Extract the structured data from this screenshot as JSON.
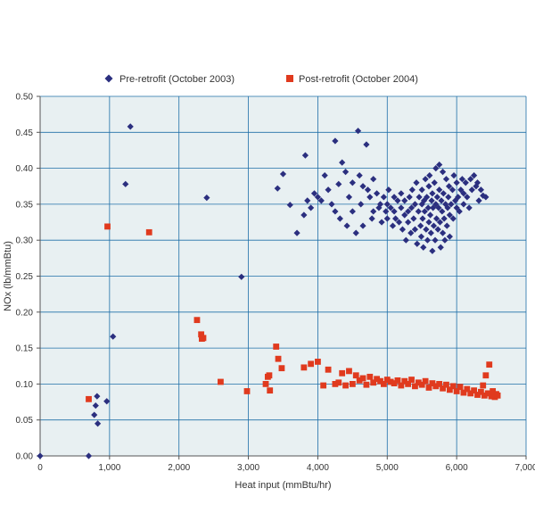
{
  "chart_data": {
    "type": "scatter",
    "title": "",
    "xlabel": "Heat input (mmBtu/hr)",
    "ylabel": "NOx (lb/mmBtu)",
    "xlim": [
      0,
      7000
    ],
    "ylim": [
      0,
      0.5
    ],
    "x_ticks": [
      0,
      1000,
      2000,
      3000,
      4000,
      5000,
      6000,
      7000
    ],
    "x_tick_labels": [
      "0",
      "1,000",
      "2,000",
      "3,000",
      "4,000",
      "5,000",
      "6,000",
      "7,000"
    ],
    "y_ticks": [
      0,
      0.05,
      0.1,
      0.15,
      0.2,
      0.25,
      0.3,
      0.35,
      0.4,
      0.45,
      0.5
    ],
    "y_tick_labels": [
      "0.00",
      "0.05",
      "0.10",
      "0.15",
      "0.20",
      "0.25",
      "0.30",
      "0.35",
      "0.40",
      "0.45",
      "0.50"
    ],
    "grid": true,
    "legend_position": "top",
    "plot_background": "#e8f0f2",
    "grid_color": "#1f6fa8",
    "series": [
      {
        "name": "Pre-retrofit (October 2003)",
        "marker": "diamond",
        "color": "#2b2f7f",
        "points": [
          [
            0,
            0.0
          ],
          [
            700,
            0.0
          ],
          [
            780,
            0.057
          ],
          [
            800,
            0.07
          ],
          [
            820,
            0.083
          ],
          [
            830,
            0.045
          ],
          [
            960,
            0.076
          ],
          [
            1050,
            0.166
          ],
          [
            1230,
            0.378
          ],
          [
            1300,
            0.458
          ],
          [
            2400,
            0.359
          ],
          [
            2900,
            0.249
          ],
          [
            3420,
            0.372
          ],
          [
            3500,
            0.392
          ],
          [
            3600,
            0.349
          ],
          [
            3700,
            0.31
          ],
          [
            3800,
            0.335
          ],
          [
            3820,
            0.418
          ],
          [
            3850,
            0.355
          ],
          [
            3900,
            0.345
          ],
          [
            3950,
            0.365
          ],
          [
            4000,
            0.36
          ],
          [
            4050,
            0.355
          ],
          [
            4100,
            0.39
          ],
          [
            4150,
            0.37
          ],
          [
            4200,
            0.35
          ],
          [
            4250,
            0.34
          ],
          [
            4250,
            0.438
          ],
          [
            4300,
            0.378
          ],
          [
            4320,
            0.33
          ],
          [
            4350,
            0.408
          ],
          [
            4400,
            0.395
          ],
          [
            4420,
            0.32
          ],
          [
            4450,
            0.36
          ],
          [
            4500,
            0.38
          ],
          [
            4500,
            0.34
          ],
          [
            4550,
            0.31
          ],
          [
            4580,
            0.452
          ],
          [
            4600,
            0.39
          ],
          [
            4620,
            0.35
          ],
          [
            4650,
            0.375
          ],
          [
            4650,
            0.32
          ],
          [
            4700,
            0.433
          ],
          [
            4720,
            0.37
          ],
          [
            4750,
            0.36
          ],
          [
            4780,
            0.33
          ],
          [
            4800,
            0.385
          ],
          [
            4800,
            0.34
          ],
          [
            4850,
            0.365
          ],
          [
            4880,
            0.345
          ],
          [
            4900,
            0.35
          ],
          [
            4920,
            0.325
          ],
          [
            4950,
            0.36
          ],
          [
            4980,
            0.34
          ],
          [
            5000,
            0.35
          ],
          [
            5000,
            0.33
          ],
          [
            5020,
            0.37
          ],
          [
            5050,
            0.345
          ],
          [
            5080,
            0.32
          ],
          [
            5100,
            0.36
          ],
          [
            5100,
            0.34
          ],
          [
            5120,
            0.33
          ],
          [
            5150,
            0.355
          ],
          [
            5170,
            0.325
          ],
          [
            5200,
            0.345
          ],
          [
            5200,
            0.365
          ],
          [
            5220,
            0.315
          ],
          [
            5250,
            0.335
          ],
          [
            5250,
            0.355
          ],
          [
            5270,
            0.3
          ],
          [
            5300,
            0.34
          ],
          [
            5300,
            0.325
          ],
          [
            5320,
            0.36
          ],
          [
            5340,
            0.31
          ],
          [
            5350,
            0.345
          ],
          [
            5360,
            0.37
          ],
          [
            5380,
            0.33
          ],
          [
            5400,
            0.35
          ],
          [
            5400,
            0.315
          ],
          [
            5420,
            0.38
          ],
          [
            5430,
            0.295
          ],
          [
            5450,
            0.34
          ],
          [
            5460,
            0.36
          ],
          [
            5480,
            0.32
          ],
          [
            5490,
            0.305
          ],
          [
            5500,
            0.35
          ],
          [
            5500,
            0.37
          ],
          [
            5510,
            0.33
          ],
          [
            5520,
            0.29
          ],
          [
            5530,
            0.355
          ],
          [
            5540,
            0.34
          ],
          [
            5550,
            0.385
          ],
          [
            5560,
            0.315
          ],
          [
            5570,
            0.36
          ],
          [
            5580,
            0.3
          ],
          [
            5590,
            0.345
          ],
          [
            5600,
            0.375
          ],
          [
            5600,
            0.325
          ],
          [
            5610,
            0.39
          ],
          [
            5620,
            0.335
          ],
          [
            5630,
            0.31
          ],
          [
            5640,
            0.355
          ],
          [
            5650,
            0.365
          ],
          [
            5650,
            0.285
          ],
          [
            5660,
            0.345
          ],
          [
            5670,
            0.32
          ],
          [
            5680,
            0.38
          ],
          [
            5690,
            0.3
          ],
          [
            5700,
            0.35
          ],
          [
            5700,
            0.4
          ],
          [
            5710,
            0.33
          ],
          [
            5720,
            0.36
          ],
          [
            5730,
            0.315
          ],
          [
            5740,
            0.345
          ],
          [
            5750,
            0.37
          ],
          [
            5750,
            0.405
          ],
          [
            5760,
            0.325
          ],
          [
            5770,
            0.29
          ],
          [
            5780,
            0.355
          ],
          [
            5790,
            0.34
          ],
          [
            5800,
            0.395
          ],
          [
            5800,
            0.31
          ],
          [
            5810,
            0.365
          ],
          [
            5820,
            0.33
          ],
          [
            5830,
            0.3
          ],
          [
            5840,
            0.35
          ],
          [
            5850,
            0.385
          ],
          [
            5860,
            0.32
          ],
          [
            5870,
            0.345
          ],
          [
            5880,
            0.36
          ],
          [
            5890,
            0.375
          ],
          [
            5900,
            0.335
          ],
          [
            5900,
            0.305
          ],
          [
            5920,
            0.35
          ],
          [
            5940,
            0.37
          ],
          [
            5950,
            0.33
          ],
          [
            5960,
            0.39
          ],
          [
            5980,
            0.355
          ],
          [
            6000,
            0.345
          ],
          [
            6000,
            0.38
          ],
          [
            6020,
            0.36
          ],
          [
            6040,
            0.34
          ],
          [
            6060,
            0.37
          ],
          [
            6080,
            0.385
          ],
          [
            6100,
            0.35
          ],
          [
            6100,
            0.365
          ],
          [
            6130,
            0.38
          ],
          [
            6150,
            0.36
          ],
          [
            6180,
            0.345
          ],
          [
            6200,
            0.385
          ],
          [
            6220,
            0.37
          ],
          [
            6250,
            0.39
          ],
          [
            6280,
            0.375
          ],
          [
            6300,
            0.38
          ],
          [
            6320,
            0.355
          ],
          [
            6350,
            0.37
          ],
          [
            6380,
            0.362
          ],
          [
            6420,
            0.36
          ]
        ]
      },
      {
        "name": "Post-retrofit (October 2004)",
        "marker": "square",
        "color": "#e03a1e",
        "points": [
          [
            700,
            0.079
          ],
          [
            970,
            0.319
          ],
          [
            1570,
            0.311
          ],
          [
            2260,
            0.189
          ],
          [
            2320,
            0.169
          ],
          [
            2330,
            0.163
          ],
          [
            2350,
            0.164
          ],
          [
            2600,
            0.103
          ],
          [
            2980,
            0.09
          ],
          [
            3250,
            0.1
          ],
          [
            3280,
            0.11
          ],
          [
            3300,
            0.112
          ],
          [
            3310,
            0.091
          ],
          [
            3400,
            0.152
          ],
          [
            3430,
            0.135
          ],
          [
            3480,
            0.122
          ],
          [
            3800,
            0.123
          ],
          [
            3900,
            0.128
          ],
          [
            4000,
            0.131
          ],
          [
            4080,
            0.098
          ],
          [
            4150,
            0.12
          ],
          [
            4250,
            0.1
          ],
          [
            4300,
            0.102
          ],
          [
            4350,
            0.115
          ],
          [
            4400,
            0.098
          ],
          [
            4450,
            0.118
          ],
          [
            4500,
            0.1
          ],
          [
            4550,
            0.112
          ],
          [
            4600,
            0.105
          ],
          [
            4650,
            0.108
          ],
          [
            4700,
            0.099
          ],
          [
            4750,
            0.11
          ],
          [
            4800,
            0.102
          ],
          [
            4850,
            0.107
          ],
          [
            4900,
            0.104
          ],
          [
            4950,
            0.1
          ],
          [
            5000,
            0.106
          ],
          [
            5050,
            0.103
          ],
          [
            5100,
            0.101
          ],
          [
            5150,
            0.105
          ],
          [
            5200,
            0.098
          ],
          [
            5250,
            0.104
          ],
          [
            5300,
            0.1
          ],
          [
            5350,
            0.106
          ],
          [
            5400,
            0.097
          ],
          [
            5450,
            0.102
          ],
          [
            5500,
            0.099
          ],
          [
            5550,
            0.104
          ],
          [
            5600,
            0.095
          ],
          [
            5650,
            0.101
          ],
          [
            5700,
            0.097
          ],
          [
            5750,
            0.1
          ],
          [
            5800,
            0.094
          ],
          [
            5850,
            0.099
          ],
          [
            5900,
            0.092
          ],
          [
            5950,
            0.097
          ],
          [
            6000,
            0.09
          ],
          [
            6050,
            0.096
          ],
          [
            6100,
            0.088
          ],
          [
            6150,
            0.093
          ],
          [
            6200,
            0.087
          ],
          [
            6250,
            0.091
          ],
          [
            6300,
            0.085
          ],
          [
            6350,
            0.089
          ],
          [
            6380,
            0.098
          ],
          [
            6400,
            0.084
          ],
          [
            6420,
            0.112
          ],
          [
            6450,
            0.087
          ],
          [
            6470,
            0.127
          ],
          [
            6500,
            0.083
          ],
          [
            6520,
            0.09
          ],
          [
            6550,
            0.082
          ],
          [
            6570,
            0.086
          ],
          [
            6590,
            0.084
          ]
        ]
      }
    ]
  }
}
